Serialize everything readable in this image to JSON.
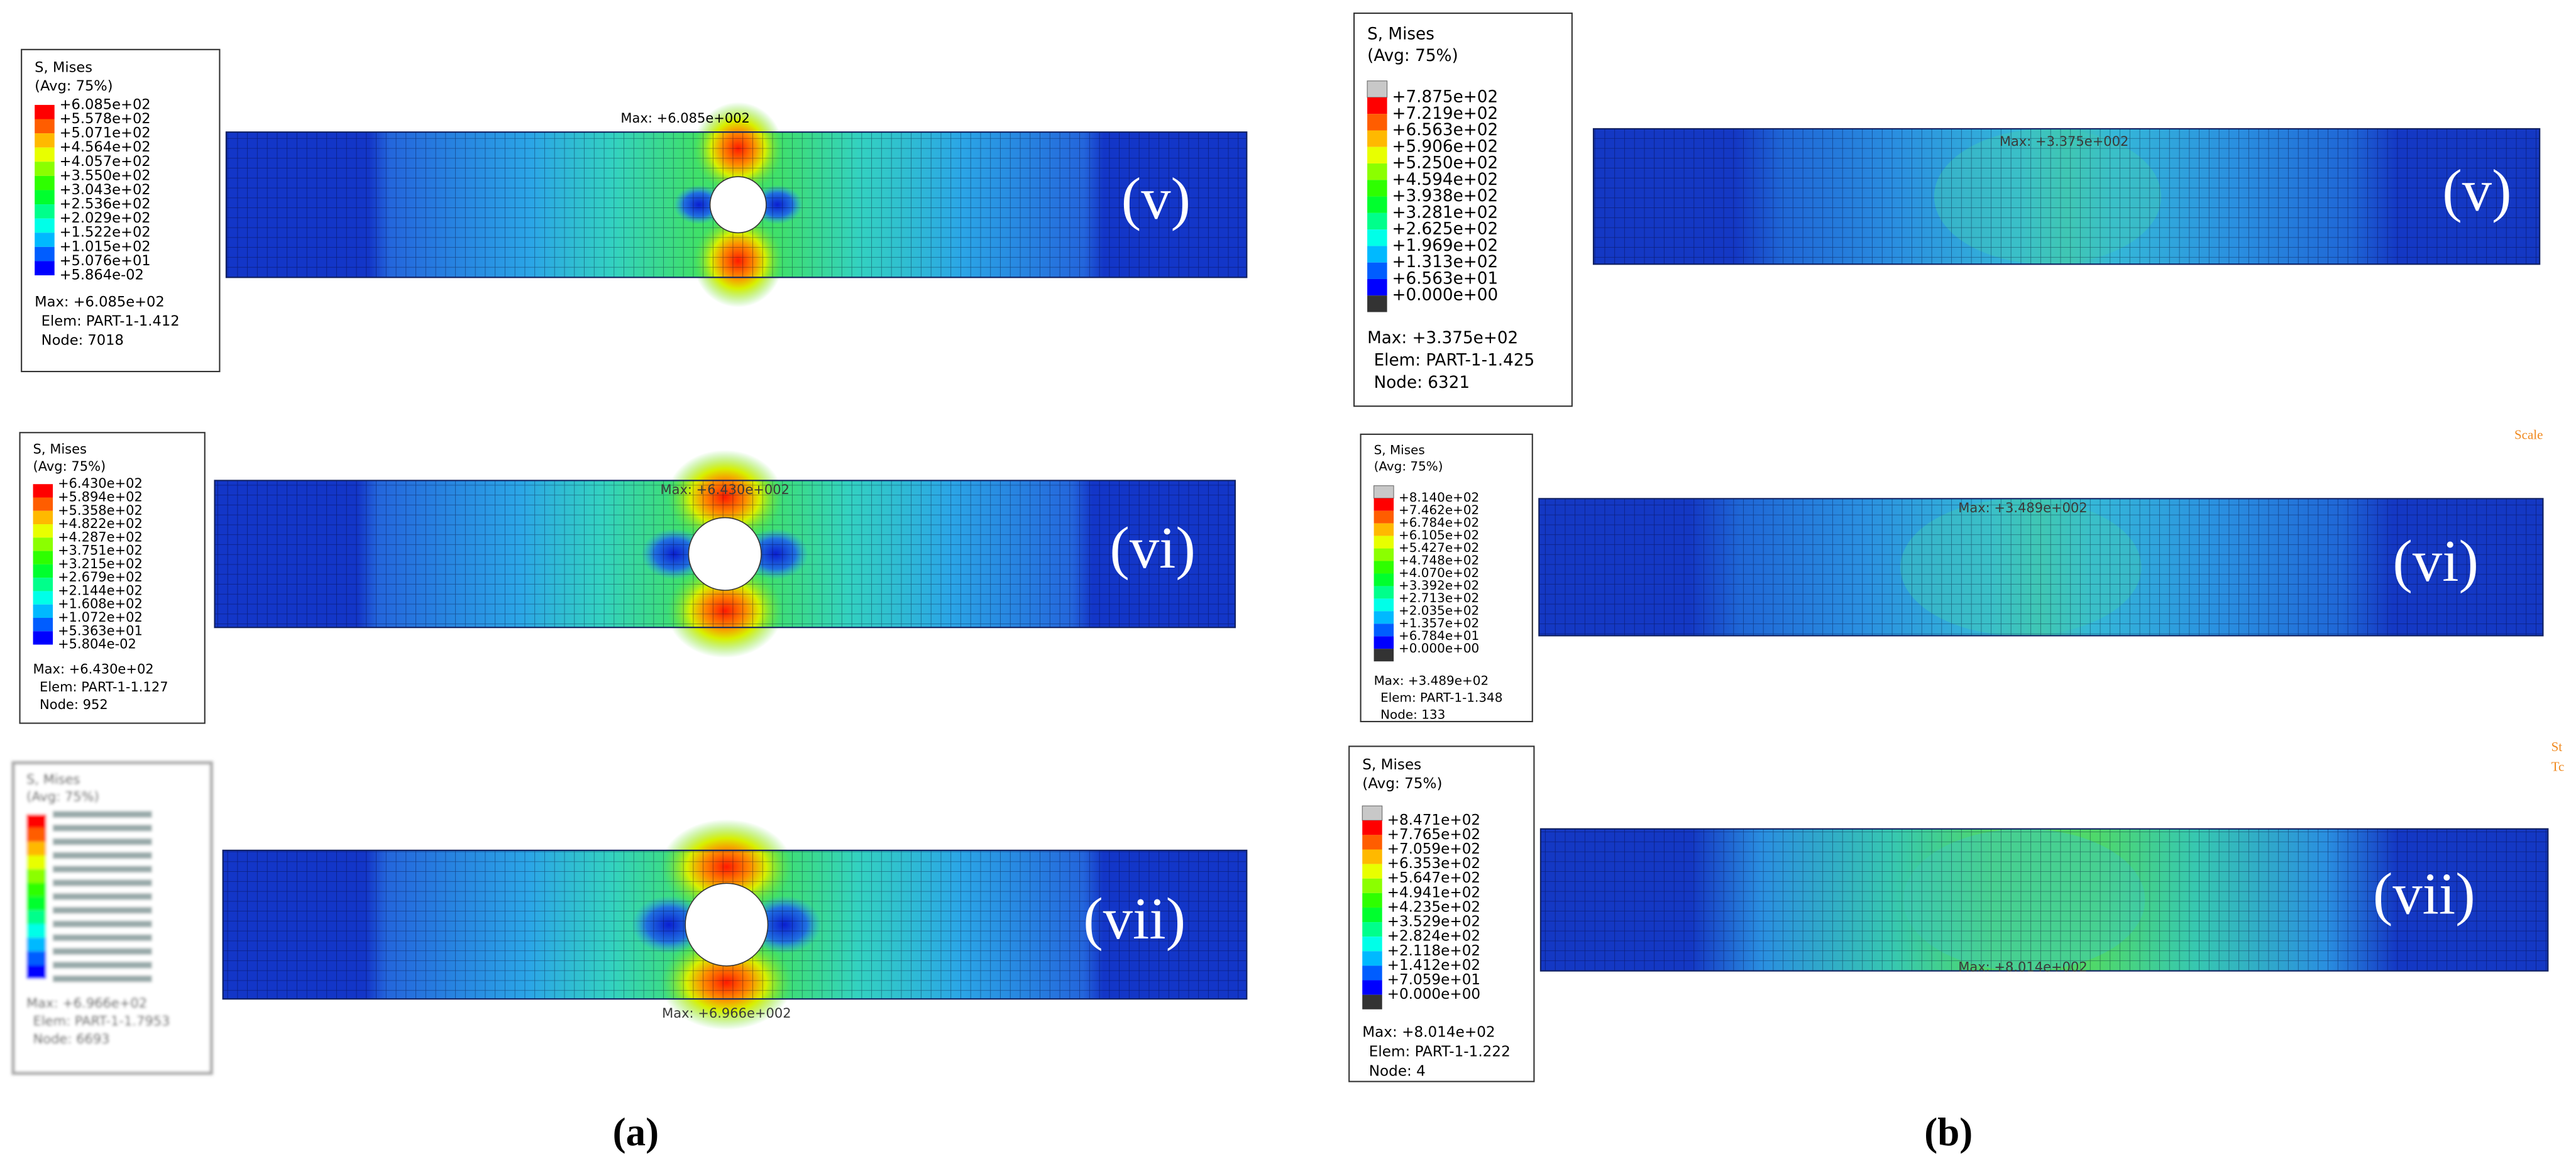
{
  "panels": [
    {
      "label": "(a)",
      "plots": [
        {
          "tag": "(v)",
          "annotation": "Max: +6.085e+002",
          "legend": {
            "title": "S, Mises",
            "avg": "(Avg: 75%)",
            "values": [
              "+6.085e+02",
              "+5.578e+02",
              "+5.071e+02",
              "+4.564e+02",
              "+4.057e+02",
              "+3.550e+02",
              "+3.043e+02",
              "+2.536e+02",
              "+2.029e+02",
              "+1.522e+02",
              "+1.015e+02",
              "+5.076e+01",
              "+5.864e-02"
            ],
            "max": "Max: +6.085e+02",
            "elem": "Elem: PART-1-1.412",
            "node": "Node: 7018"
          }
        },
        {
          "tag": "(vi)",
          "annotation": "Max: +6.430e+002",
          "legend": {
            "title": "S, Mises",
            "avg": "(Avg: 75%)",
            "values": [
              "+6.430e+02",
              "+5.894e+02",
              "+5.358e+02",
              "+4.822e+02",
              "+4.287e+02",
              "+3.751e+02",
              "+3.215e+02",
              "+2.679e+02",
              "+2.144e+02",
              "+1.608e+02",
              "+1.072e+02",
              "+5.363e+01",
              "+5.804e-02"
            ],
            "max": "Max: +6.430e+02",
            "elem": "Elem: PART-1-1.127",
            "node": "Node: 952"
          }
        },
        {
          "tag": "(vii)",
          "annotation": "Max: +6.966e+002",
          "legend": {
            "title": "S, Mises",
            "avg": "(Avg: 75%)",
            "max": "Max: +6.966e+02",
            "elem": "Elem: PART-1-1.7953",
            "node": "Node: 6693"
          }
        }
      ]
    },
    {
      "label": "(b)",
      "plots": [
        {
          "tag": "(v)",
          "annotation": "Max: +3.375e+002",
          "legend": {
            "title": "S, Mises",
            "avg": "(Avg: 75%)",
            "values": [
              "+7.875e+02",
              "+7.219e+02",
              "+6.563e+02",
              "+5.906e+02",
              "+5.250e+02",
              "+4.594e+02",
              "+3.938e+02",
              "+3.281e+02",
              "+2.625e+02",
              "+1.969e+02",
              "+1.313e+02",
              "+6.563e+01",
              "+0.000e+00"
            ],
            "max": "Max: +3.375e+02",
            "elem": "Elem: PART-1-1.425",
            "node": "Node: 6321"
          }
        },
        {
          "tag": "(vi)",
          "annotation": "Max: +3.489e+002",
          "legend": {
            "title": "S, Mises",
            "avg": "(Avg: 75%)",
            "values": [
              "+8.140e+02",
              "+7.462e+02",
              "+6.784e+02",
              "+6.105e+02",
              "+5.427e+02",
              "+4.748e+02",
              "+4.070e+02",
              "+3.392e+02",
              "+2.713e+02",
              "+2.035e+02",
              "+1.357e+02",
              "+6.784e+01",
              "+0.000e+00"
            ],
            "max": "Max: +3.489e+02",
            "elem": "Elem: PART-1-1.348",
            "node": "Node: 133"
          }
        },
        {
          "tag": "(vii)",
          "annotation": "Max: +8.014e+002",
          "legend": {
            "title": "S, Mises",
            "avg": "(Avg: 75%)",
            "values": [
              "+8.471e+02",
              "+7.765e+02",
              "+7.059e+02",
              "+6.353e+02",
              "+5.647e+02",
              "+4.941e+02",
              "+4.235e+02",
              "+3.529e+02",
              "+2.824e+02",
              "+2.118e+02",
              "+1.412e+02",
              "+7.059e+01",
              "+0.000e+00"
            ],
            "max": "Max: +8.014e+02",
            "elem": "Elem: PART-1-1.222",
            "node": "Node: 4"
          }
        }
      ]
    }
  ],
  "side_labels": [
    "Scale",
    "St",
    "Tc"
  ]
}
